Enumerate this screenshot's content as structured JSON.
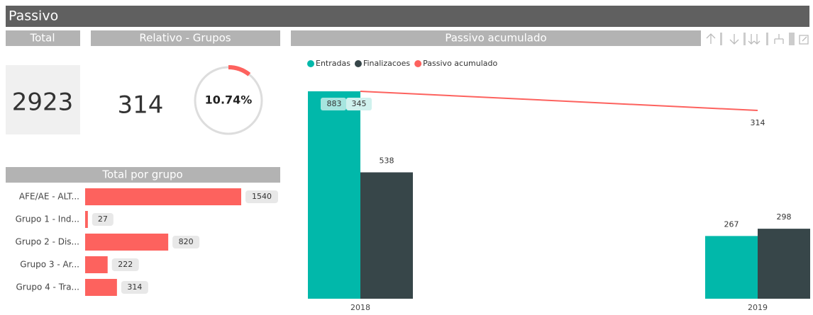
{
  "header": {
    "title": "Passivo"
  },
  "cards": [
    {
      "title": "Total",
      "value": 2923
    },
    {
      "title": "Relativo - Grupos",
      "value": 314
    }
  ],
  "chart_data": [
    {
      "type": "gauge",
      "values": [
        10.74
      ],
      "value_labels": [
        "10.74%"
      ],
      "ylim": [
        0,
        100
      ],
      "color": "#fd625e"
    },
    {
      "type": "hbar",
      "title": "Total por grupo",
      "categories": [
        "AFE/AE - ALT...",
        "Grupo 1 - Ind...",
        "Grupo 2 - Dis...",
        "Grupo 3 - Ar...",
        "Grupo 4 - Tra..."
      ],
      "values": [
        1540,
        27,
        820,
        222,
        314
      ],
      "color": "#fd625e",
      "xlim": [
        0,
        1540
      ]
    },
    {
      "type": "combo",
      "title": "Passivo acumulado",
      "categories": [
        "2018",
        "2019"
      ],
      "series": [
        {
          "name": "Entradas",
          "type": "bar",
          "color": "#01b8aa",
          "values": [
            883,
            267
          ]
        },
        {
          "name": "Finalizacoes",
          "type": "bar",
          "color": "#374649",
          "values": [
            538,
            298
          ]
        },
        {
          "name": "Passivo acumulado",
          "type": "line",
          "axis": "y2",
          "color": "#fd625e",
          "values": [
            345,
            314
          ]
        }
      ],
      "ylim": [
        0,
        883
      ],
      "y2lim": [
        9,
        345
      ],
      "legend": "top-left"
    }
  ]
}
